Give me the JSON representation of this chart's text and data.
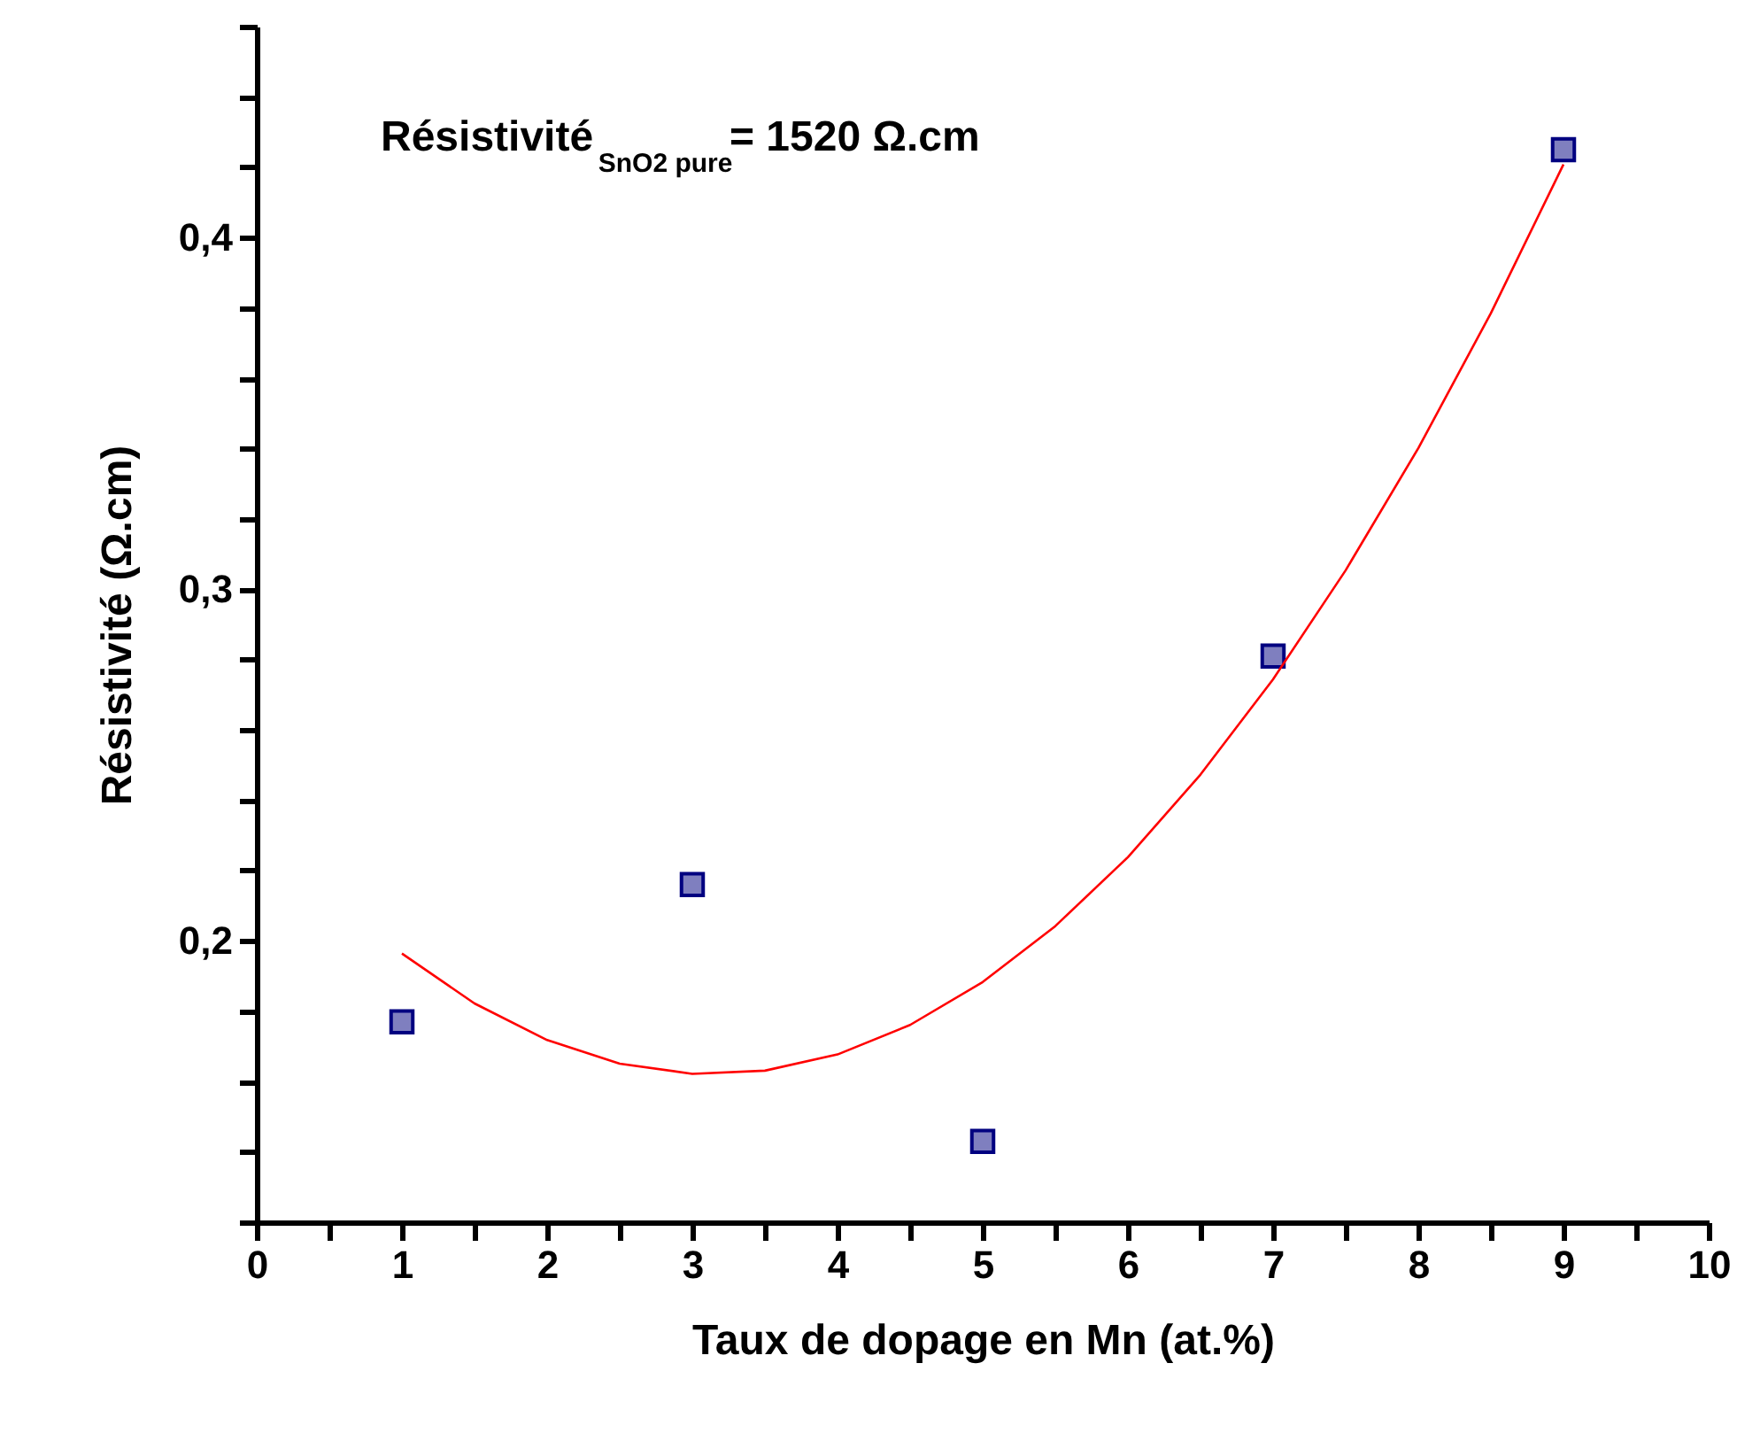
{
  "chart_data": {
    "type": "scatter",
    "xlabel": "Taux de dopage en Mn (at.%)",
    "ylabel": "Résistivité (Ω.cm)",
    "annotations": [
      "Résistivité$_{SnO2 pure}$= 1520 Ω.cm"
    ],
    "xlim": [
      0,
      10
    ],
    "ylim": [
      0.12,
      0.46
    ],
    "xticks": [
      0,
      {
        "value": 0.5,
        "label": null
      },
      1,
      {
        "value": 1.5,
        "label": null
      },
      2,
      {
        "value": 2.5,
        "label": null
      },
      3,
      {
        "value": 3.5,
        "label": null
      },
      4,
      {
        "value": 4.5,
        "label": null
      },
      5,
      {
        "value": 5.5,
        "label": null
      },
      6,
      {
        "value": 6.5,
        "label": null
      },
      7,
      {
        "value": 7.5,
        "label": null
      },
      8,
      {
        "value": 8.5,
        "label": null
      },
      9,
      {
        "value": 9.5,
        "label": null
      },
      10
    ],
    "yticks": [
      {
        "value": 0.12,
        "label": null
      },
      {
        "value": 0.14,
        "label": null
      },
      {
        "value": 0.16,
        "label": null
      },
      {
        "value": 0.18,
        "label": null
      },
      {
        "value": 0.2,
        "label": "0,2"
      },
      {
        "value": 0.22,
        "label": null
      },
      {
        "value": 0.24,
        "label": null
      },
      {
        "value": 0.26,
        "label": null
      },
      {
        "value": 0.28,
        "label": null
      },
      {
        "value": 0.3,
        "label": "0,3"
      },
      {
        "value": 0.32,
        "label": null
      },
      {
        "value": 0.34,
        "label": null
      },
      {
        "value": 0.36,
        "label": null
      },
      {
        "value": 0.38,
        "label": null
      },
      {
        "value": 0.4,
        "label": "0,4"
      },
      {
        "value": 0.42,
        "label": null
      },
      {
        "value": 0.44,
        "label": null
      },
      {
        "value": 0.46,
        "label": null
      }
    ],
    "grid": false,
    "marker": "square",
    "series": [
      {
        "color": "#000080",
        "x": [
          1,
          3,
          5,
          7,
          9
        ],
        "values": [
          0.177,
          0.216,
          0.143,
          0.281,
          0.425
        ]
      },
      {
        "type": "line",
        "color": "#ff0000",
        "marker": "none",
        "line_style": "solid",
        "x": [
          1,
          1.5,
          2,
          2.5,
          3,
          3.5,
          4,
          4.5,
          5,
          5.5,
          6,
          6.5,
          7,
          7.5,
          8,
          8.5,
          9
        ],
        "values": [
          0.1964,
          0.1822,
          0.1718,
          0.1651,
          0.1622,
          0.1631,
          0.1677,
          0.1761,
          0.1883,
          0.2042,
          0.2238,
          0.2473,
          0.2744,
          0.3054,
          0.3401,
          0.3785,
          0.4208
        ]
      }
    ]
  }
}
